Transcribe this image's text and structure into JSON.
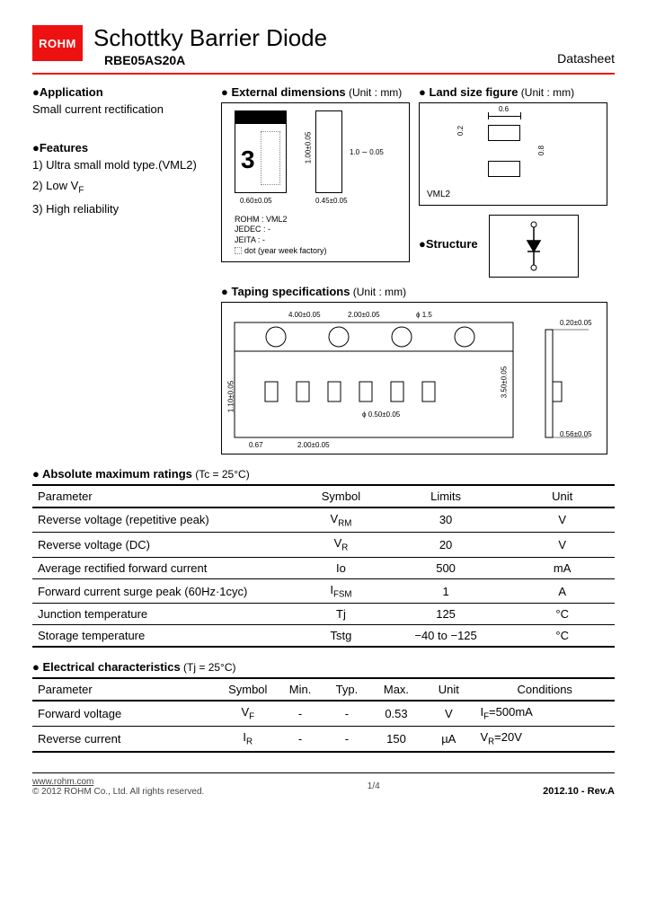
{
  "header": {
    "logo_text": "ROHM",
    "title": "Schottky Barrier Diode",
    "part_number": "RBE05AS20A",
    "doc_type": "Datasheet",
    "logo_bg": "#e11",
    "rule_color": "#e11"
  },
  "application": {
    "heading": "Application",
    "text": "Small current rectification"
  },
  "features": {
    "heading": "Features",
    "items": [
      "1) Ultra small mold type.(VML2)",
      "2) Low V",
      "3) High reliability"
    ],
    "item2_sub": "F"
  },
  "external_dim": {
    "heading": "External dimensions",
    "unit": " (Unit : mm)",
    "pkg_mark": "3",
    "notes": [
      "ROHM : VML2",
      "JEDEC : -",
      "JEITA : -",
      "dot (year week factory)"
    ],
    "dims": {
      "w": "0.60±0.05",
      "h": "1.00±0.05",
      "lead_w": "0.45±0.05",
      "lead_h": "1.0 ∼ 0.05"
    }
  },
  "land_size": {
    "heading": "Land size figure",
    "unit": " (Unit : mm)",
    "label": "VML2",
    "dims": {
      "a": "0.6",
      "b": "0.2",
      "c": "0.8"
    }
  },
  "structure": {
    "heading": "Structure"
  },
  "taping": {
    "heading": "Taping specifications",
    "unit": " (Unit : mm)",
    "dims": {
      "pitch1": "4.00±0.05",
      "pitch2": "2.00±0.05",
      "hole": "ϕ 1.5",
      "edge": "1.10±0.05",
      "pocket_w": "0.67",
      "pocket_p": "2.00±0.05",
      "pocket_h": "ϕ 0.50±0.05",
      "tape_h": "3.50±0.05",
      "thick": "0.20±0.05",
      "depth": "0.56±0.05"
    }
  },
  "abs_max": {
    "heading": "Absolute maximum ratings",
    "cond": " (Tc = 25°C)",
    "columns": [
      "Parameter",
      "Symbol",
      "Limits",
      "Unit"
    ],
    "col_widths": [
      "46%",
      "14%",
      "22%",
      "18%"
    ],
    "rows": [
      [
        "Reverse voltage (repetitive peak)",
        "V<sub>RM</sub>",
        "30",
        "V"
      ],
      [
        "Reverse voltage (DC)",
        "V<sub>R</sub>",
        "20",
        "V"
      ],
      [
        "Average rectified forward current",
        "Io",
        "500",
        "mA"
      ],
      [
        "Forward current surge peak (60Hz·1cyc)",
        "I<sub>FSM</sub>",
        "1",
        "A"
      ],
      [
        "Junction temperature",
        "Tj",
        "125",
        "°C"
      ],
      [
        "Storage temperature",
        "Tstg",
        "−40 to −125",
        "°C"
      ]
    ]
  },
  "elec_char": {
    "heading": "Electrical characteristics",
    "cond": " (Tj = 25°C)",
    "columns": [
      "Parameter",
      "Symbol",
      "Min.",
      "Typ.",
      "Max.",
      "Unit",
      "Conditions"
    ],
    "col_widths": [
      "32%",
      "10%",
      "8%",
      "8%",
      "9%",
      "9%",
      "24%"
    ],
    "rows": [
      [
        "Forward voltage",
        "V<sub>F</sub>",
        "-",
        "-",
        "0.53",
        "V",
        "I<sub>F</sub>=500mA"
      ],
      [
        "Reverse current",
        "I<sub>R</sub>",
        "-",
        "-",
        "150",
        "µA",
        "V<sub>R</sub>=20V"
      ]
    ]
  },
  "footer": {
    "url": "www.rohm.com",
    "copyright": "© 2012  ROHM Co., Ltd. All rights reserved.",
    "page": "1/4",
    "rev": "2012.10 -  Rev.A"
  }
}
